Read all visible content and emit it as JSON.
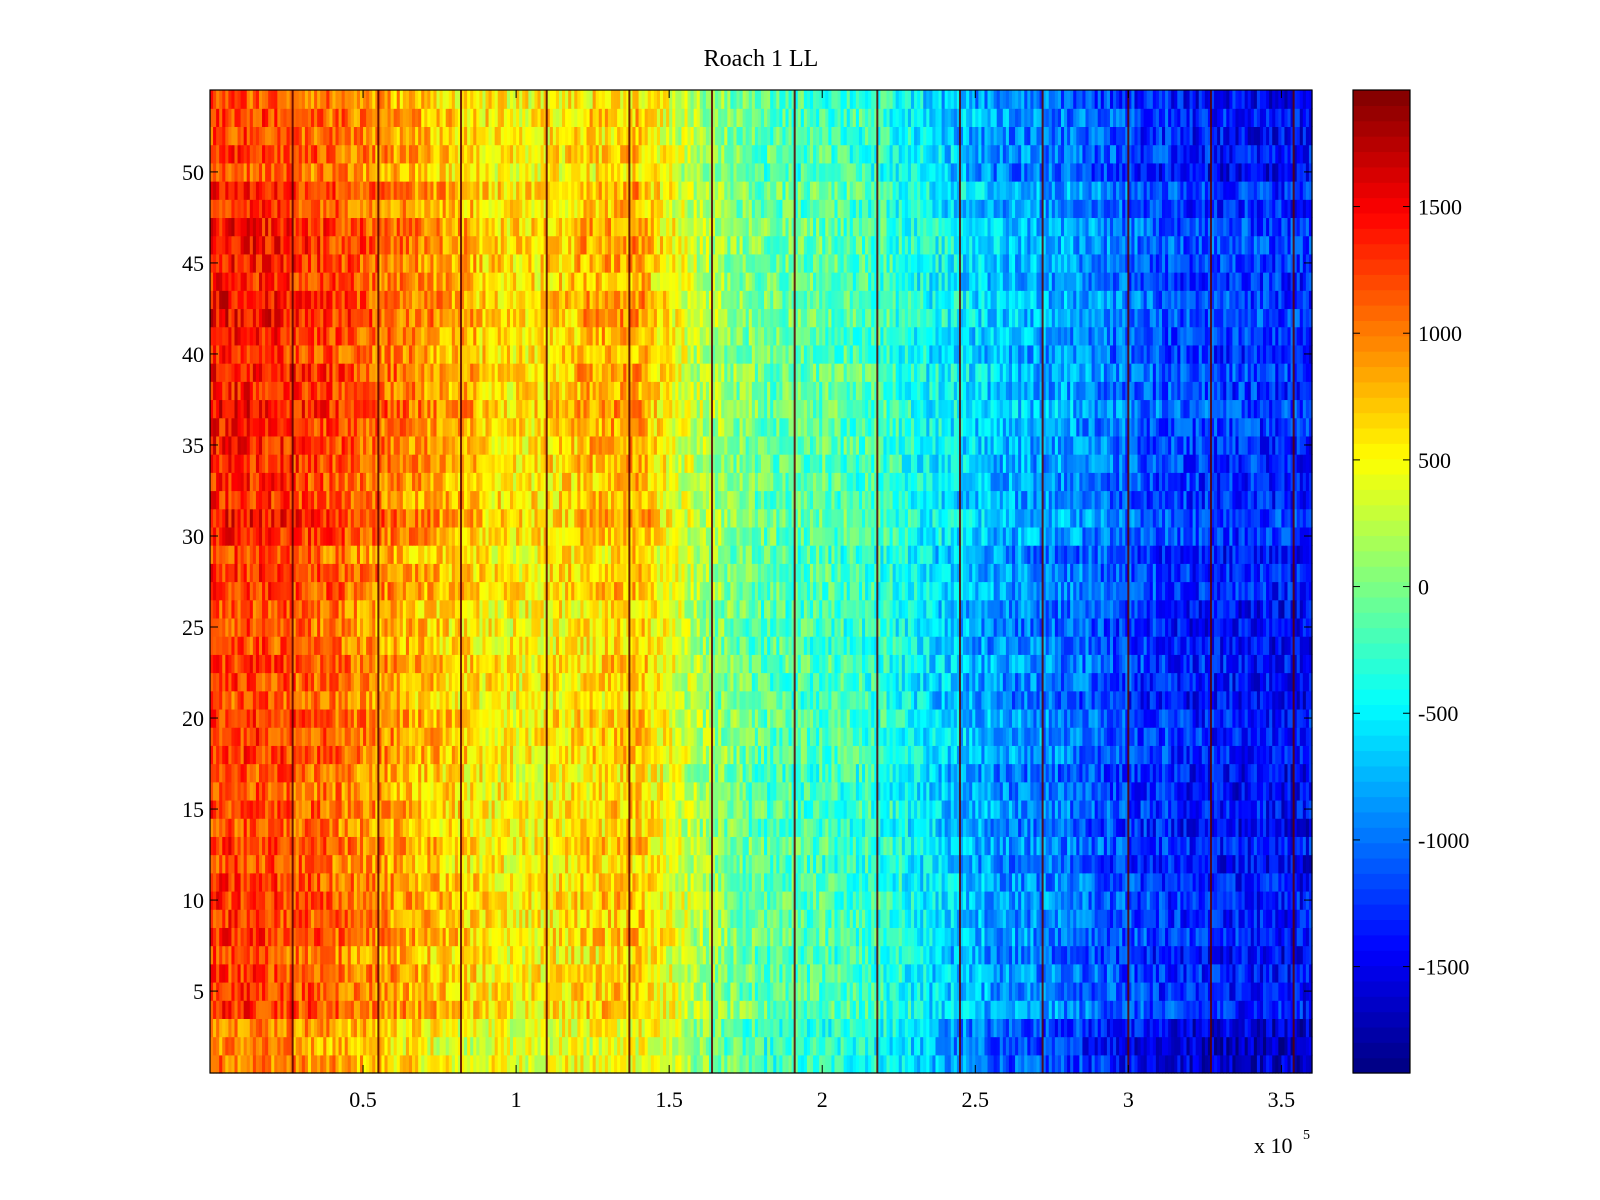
{
  "chart_data": {
    "type": "heatmap",
    "title": "Roach 1 LL",
    "xlabel": "",
    "ylabel": "",
    "x_multiplier": "x 10",
    "x_multiplier_exponent": "5",
    "xlim": [
      0,
      360000
    ],
    "ylim": [
      0.5,
      54.5
    ],
    "x_ticks": [
      50000,
      100000,
      150000,
      200000,
      250000,
      300000,
      350000
    ],
    "x_tick_labels": [
      "0.5",
      "1",
      "1.5",
      "2",
      "2.5",
      "3",
      "3.5"
    ],
    "y_ticks": [
      5,
      10,
      15,
      20,
      25,
      30,
      35,
      40,
      45,
      50
    ],
    "y_tick_labels": [
      "5",
      "10",
      "15",
      "20",
      "25",
      "30",
      "35",
      "40",
      "45",
      "50"
    ],
    "rows": 54,
    "colormap": "jet",
    "clim": [
      -1920,
      1960
    ],
    "colorbar": {
      "ticks": [
        -1500,
        -1000,
        -500,
        0,
        500,
        1000,
        1500
      ],
      "tick_labels": [
        "-1500",
        "-1000",
        "-500",
        "0",
        "500",
        "1000",
        "1500"
      ]
    },
    "column_trend": {
      "x": [
        0,
        20000,
        40000,
        60000,
        80000,
        100000,
        120000,
        140000,
        160000,
        180000,
        200000,
        220000,
        240000,
        260000,
        280000,
        300000,
        320000,
        340000,
        360000
      ],
      "mean_value": [
        1250,
        1200,
        1050,
        850,
        650,
        500,
        600,
        700,
        150,
        -150,
        -200,
        -300,
        -650,
        -900,
        -1000,
        -1200,
        -1350,
        -1400,
        -1450
      ]
    },
    "dark_vertical_lines_x": [
      27000,
      55000,
      82000,
      110000,
      137000,
      164000,
      191000,
      218000,
      245000,
      272000,
      300000,
      327000,
      354000
    ],
    "grid": false,
    "legend": "none"
  }
}
